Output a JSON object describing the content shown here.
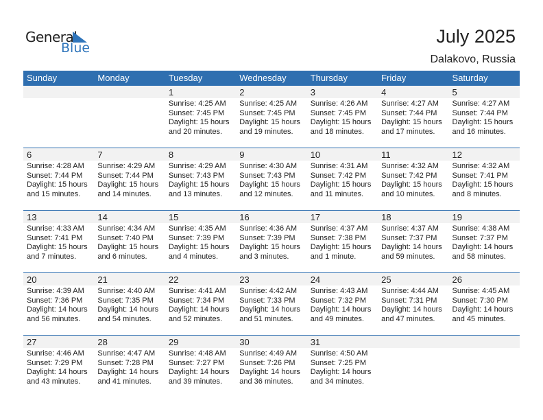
{
  "logo": {
    "line1": "General",
    "line2": "Blue",
    "color": "#2f75bb"
  },
  "header": {
    "title": "July 2025",
    "location": "Dalakovo, Russia"
  },
  "colors": {
    "header_bg": "#2f6fb0",
    "day_band": "#f2f2f2"
  },
  "days": [
    "Sunday",
    "Monday",
    "Tuesday",
    "Wednesday",
    "Thursday",
    "Friday",
    "Saturday"
  ],
  "weeks": [
    [
      null,
      null,
      {
        "day": "1",
        "sunrise": "Sunrise: 4:25 AM",
        "sunset": "Sunset: 7:45 PM",
        "daylight1": "Daylight: 15 hours",
        "daylight2": "and 20 minutes."
      },
      {
        "day": "2",
        "sunrise": "Sunrise: 4:25 AM",
        "sunset": "Sunset: 7:45 PM",
        "daylight1": "Daylight: 15 hours",
        "daylight2": "and 19 minutes."
      },
      {
        "day": "3",
        "sunrise": "Sunrise: 4:26 AM",
        "sunset": "Sunset: 7:45 PM",
        "daylight1": "Daylight: 15 hours",
        "daylight2": "and 18 minutes."
      },
      {
        "day": "4",
        "sunrise": "Sunrise: 4:27 AM",
        "sunset": "Sunset: 7:44 PM",
        "daylight1": "Daylight: 15 hours",
        "daylight2": "and 17 minutes."
      },
      {
        "day": "5",
        "sunrise": "Sunrise: 4:27 AM",
        "sunset": "Sunset: 7:44 PM",
        "daylight1": "Daylight: 15 hours",
        "daylight2": "and 16 minutes."
      }
    ],
    [
      {
        "day": "6",
        "sunrise": "Sunrise: 4:28 AM",
        "sunset": "Sunset: 7:44 PM",
        "daylight1": "Daylight: 15 hours",
        "daylight2": "and 15 minutes."
      },
      {
        "day": "7",
        "sunrise": "Sunrise: 4:29 AM",
        "sunset": "Sunset: 7:44 PM",
        "daylight1": "Daylight: 15 hours",
        "daylight2": "and 14 minutes."
      },
      {
        "day": "8",
        "sunrise": "Sunrise: 4:29 AM",
        "sunset": "Sunset: 7:43 PM",
        "daylight1": "Daylight: 15 hours",
        "daylight2": "and 13 minutes."
      },
      {
        "day": "9",
        "sunrise": "Sunrise: 4:30 AM",
        "sunset": "Sunset: 7:43 PM",
        "daylight1": "Daylight: 15 hours",
        "daylight2": "and 12 minutes."
      },
      {
        "day": "10",
        "sunrise": "Sunrise: 4:31 AM",
        "sunset": "Sunset: 7:42 PM",
        "daylight1": "Daylight: 15 hours",
        "daylight2": "and 11 minutes."
      },
      {
        "day": "11",
        "sunrise": "Sunrise: 4:32 AM",
        "sunset": "Sunset: 7:42 PM",
        "daylight1": "Daylight: 15 hours",
        "daylight2": "and 10 minutes."
      },
      {
        "day": "12",
        "sunrise": "Sunrise: 4:32 AM",
        "sunset": "Sunset: 7:41 PM",
        "daylight1": "Daylight: 15 hours",
        "daylight2": "and 8 minutes."
      }
    ],
    [
      {
        "day": "13",
        "sunrise": "Sunrise: 4:33 AM",
        "sunset": "Sunset: 7:41 PM",
        "daylight1": "Daylight: 15 hours",
        "daylight2": "and 7 minutes."
      },
      {
        "day": "14",
        "sunrise": "Sunrise: 4:34 AM",
        "sunset": "Sunset: 7:40 PM",
        "daylight1": "Daylight: 15 hours",
        "daylight2": "and 6 minutes."
      },
      {
        "day": "15",
        "sunrise": "Sunrise: 4:35 AM",
        "sunset": "Sunset: 7:39 PM",
        "daylight1": "Daylight: 15 hours",
        "daylight2": "and 4 minutes."
      },
      {
        "day": "16",
        "sunrise": "Sunrise: 4:36 AM",
        "sunset": "Sunset: 7:39 PM",
        "daylight1": "Daylight: 15 hours",
        "daylight2": "and 3 minutes."
      },
      {
        "day": "17",
        "sunrise": "Sunrise: 4:37 AM",
        "sunset": "Sunset: 7:38 PM",
        "daylight1": "Daylight: 15 hours",
        "daylight2": "and 1 minute."
      },
      {
        "day": "18",
        "sunrise": "Sunrise: 4:37 AM",
        "sunset": "Sunset: 7:37 PM",
        "daylight1": "Daylight: 14 hours",
        "daylight2": "and 59 minutes."
      },
      {
        "day": "19",
        "sunrise": "Sunrise: 4:38 AM",
        "sunset": "Sunset: 7:37 PM",
        "daylight1": "Daylight: 14 hours",
        "daylight2": "and 58 minutes."
      }
    ],
    [
      {
        "day": "20",
        "sunrise": "Sunrise: 4:39 AM",
        "sunset": "Sunset: 7:36 PM",
        "daylight1": "Daylight: 14 hours",
        "daylight2": "and 56 minutes."
      },
      {
        "day": "21",
        "sunrise": "Sunrise: 4:40 AM",
        "sunset": "Sunset: 7:35 PM",
        "daylight1": "Daylight: 14 hours",
        "daylight2": "and 54 minutes."
      },
      {
        "day": "22",
        "sunrise": "Sunrise: 4:41 AM",
        "sunset": "Sunset: 7:34 PM",
        "daylight1": "Daylight: 14 hours",
        "daylight2": "and 52 minutes."
      },
      {
        "day": "23",
        "sunrise": "Sunrise: 4:42 AM",
        "sunset": "Sunset: 7:33 PM",
        "daylight1": "Daylight: 14 hours",
        "daylight2": "and 51 minutes."
      },
      {
        "day": "24",
        "sunrise": "Sunrise: 4:43 AM",
        "sunset": "Sunset: 7:32 PM",
        "daylight1": "Daylight: 14 hours",
        "daylight2": "and 49 minutes."
      },
      {
        "day": "25",
        "sunrise": "Sunrise: 4:44 AM",
        "sunset": "Sunset: 7:31 PM",
        "daylight1": "Daylight: 14 hours",
        "daylight2": "and 47 minutes."
      },
      {
        "day": "26",
        "sunrise": "Sunrise: 4:45 AM",
        "sunset": "Sunset: 7:30 PM",
        "daylight1": "Daylight: 14 hours",
        "daylight2": "and 45 minutes."
      }
    ],
    [
      {
        "day": "27",
        "sunrise": "Sunrise: 4:46 AM",
        "sunset": "Sunset: 7:29 PM",
        "daylight1": "Daylight: 14 hours",
        "daylight2": "and 43 minutes."
      },
      {
        "day": "28",
        "sunrise": "Sunrise: 4:47 AM",
        "sunset": "Sunset: 7:28 PM",
        "daylight1": "Daylight: 14 hours",
        "daylight2": "and 41 minutes."
      },
      {
        "day": "29",
        "sunrise": "Sunrise: 4:48 AM",
        "sunset": "Sunset: 7:27 PM",
        "daylight1": "Daylight: 14 hours",
        "daylight2": "and 39 minutes."
      },
      {
        "day": "30",
        "sunrise": "Sunrise: 4:49 AM",
        "sunset": "Sunset: 7:26 PM",
        "daylight1": "Daylight: 14 hours",
        "daylight2": "and 36 minutes."
      },
      {
        "day": "31",
        "sunrise": "Sunrise: 4:50 AM",
        "sunset": "Sunset: 7:25 PM",
        "daylight1": "Daylight: 14 hours",
        "daylight2": "and 34 minutes."
      },
      null,
      null
    ]
  ]
}
